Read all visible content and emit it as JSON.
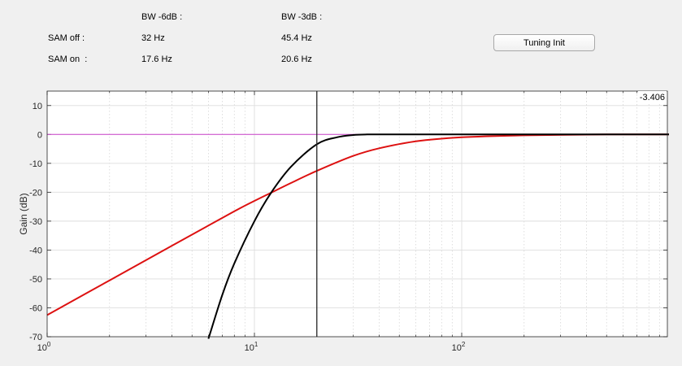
{
  "bandwidth_table": {
    "header_6db": "BW -6dB :",
    "header_3db": "BW -3dB :",
    "rows": [
      {
        "label": "SAM off :",
        "bw_6db": "32 Hz",
        "bw_3db": "45.4 Hz"
      },
      {
        "label": "SAM on  :",
        "bw_6db": "17.6 Hz",
        "bw_3db": "20.6 Hz"
      }
    ]
  },
  "buttons": {
    "tuning_init": "Tuning Init"
  },
  "cursor": {
    "readout": "-3.406",
    "x_hz": 20
  },
  "chart_data": {
    "type": "line",
    "title": "",
    "xlabel": "",
    "ylabel": "Gain (dB)",
    "xscale": "log",
    "xlim": [
      1,
      1000
    ],
    "ylim": [
      -70,
      15
    ],
    "grid": true,
    "x_ticks": [
      {
        "value": 1,
        "base": "10",
        "exp": "0"
      },
      {
        "value": 10,
        "base": "10",
        "exp": "1"
      },
      {
        "value": 100,
        "base": "10",
        "exp": "2"
      }
    ],
    "y_ticks": [
      10,
      0,
      -10,
      -20,
      -30,
      -40,
      -50,
      -60,
      -70
    ],
    "reference_line": {
      "y": 0,
      "color": "#cc44cc"
    },
    "series": [
      {
        "color": "#dd1111",
        "x": [
          1,
          2,
          4,
          8,
          10,
          12,
          15,
          20,
          30,
          40,
          60,
          100,
          200,
          500,
          1000
        ],
        "y": [
          -62.5,
          -50.5,
          -38.5,
          -26.6,
          -23.0,
          -20.2,
          -16.8,
          -12.6,
          -7.4,
          -4.8,
          -2.4,
          -1.0,
          -0.3,
          0,
          0
        ]
      },
      {
        "color": "#000000",
        "x": [
          6,
          7,
          8,
          10,
          12,
          15,
          20,
          25,
          30,
          35,
          40,
          60,
          100,
          1000
        ],
        "y": [
          -70.7,
          -55.5,
          -44.6,
          -30.0,
          -20.3,
          -11.2,
          -3.4,
          -1.0,
          -0.2,
          0,
          0,
          0,
          0,
          0
        ]
      }
    ]
  }
}
